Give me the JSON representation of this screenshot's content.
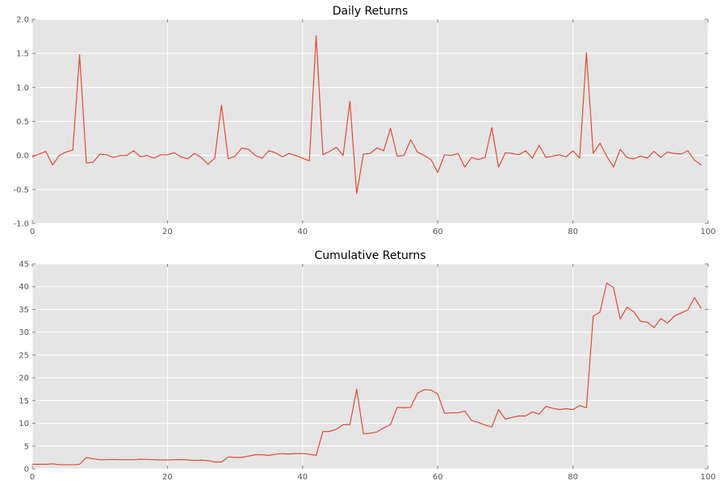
{
  "chart_data": [
    {
      "type": "line",
      "title": "Daily Returns",
      "xlabel": "",
      "ylabel": "",
      "xlim": [
        0,
        100
      ],
      "ylim": [
        -1.0,
        2.0
      ],
      "xticks": [
        "0",
        "20",
        "40",
        "60",
        "80",
        "100"
      ],
      "yticks": [
        "-1.0",
        "-0.5",
        "0.0",
        "0.5",
        "1.0",
        "1.5",
        "2.0"
      ],
      "grid": true,
      "color": "#e24a33",
      "x": [
        0,
        1,
        2,
        3,
        4,
        5,
        6,
        7,
        8,
        9,
        10,
        11,
        12,
        13,
        14,
        15,
        16,
        17,
        18,
        19,
        20,
        21,
        22,
        23,
        24,
        25,
        26,
        27,
        28,
        29,
        30,
        31,
        32,
        33,
        34,
        35,
        36,
        37,
        38,
        39,
        40,
        41,
        42,
        43,
        44,
        45,
        46,
        47,
        48,
        49,
        50,
        51,
        52,
        53,
        54,
        55,
        56,
        57,
        58,
        59,
        60,
        61,
        62,
        63,
        64,
        65,
        66,
        67,
        68,
        69,
        70,
        71,
        72,
        73,
        74,
        75,
        76,
        77,
        78,
        79,
        80,
        81,
        82,
        83,
        84,
        85,
        86,
        87,
        88,
        89,
        90,
        91,
        92,
        93,
        94,
        95,
        96,
        97,
        98,
        99
      ],
      "y": [
        -0.02,
        0.02,
        0.06,
        -0.14,
        0.0,
        0.05,
        0.08,
        1.48,
        -0.11,
        -0.1,
        0.02,
        0.01,
        -0.03,
        0.0,
        0.0,
        0.07,
        -0.02,
        0.0,
        -0.04,
        0.01,
        0.01,
        0.04,
        -0.02,
        -0.05,
        0.03,
        -0.03,
        -0.13,
        -0.04,
        0.74,
        -0.05,
        -0.01,
        0.11,
        0.09,
        0.0,
        -0.04,
        0.07,
        0.04,
        -0.02,
        0.03,
        0.0,
        -0.04,
        -0.08,
        1.76,
        0.01,
        0.06,
        0.12,
        0.0,
        0.8,
        -0.56,
        0.02,
        0.03,
        0.11,
        0.07,
        0.4,
        -0.01,
        0.0,
        0.23,
        0.05,
        0.0,
        -0.06,
        -0.25,
        0.01,
        0.0,
        0.03,
        -0.17,
        -0.03,
        -0.06,
        -0.03,
        0.41,
        -0.17,
        0.04,
        0.03,
        0.01,
        0.07,
        -0.04,
        0.15,
        -0.03,
        -0.01,
        0.01,
        -0.02,
        0.07,
        -0.04,
        1.51,
        0.03,
        0.18,
        -0.01,
        -0.17,
        0.09,
        -0.03,
        -0.05,
        -0.01,
        -0.04,
        0.06,
        -0.03,
        0.05,
        0.03,
        0.02,
        0.07,
        -0.07,
        -0.14
      ]
    },
    {
      "type": "line",
      "title": "Cumulative Returns",
      "xlabel": "",
      "ylabel": "",
      "xlim": [
        0,
        100
      ],
      "ylim": [
        0,
        45
      ],
      "xticks": [
        "0",
        "20",
        "40",
        "60",
        "80",
        "100"
      ],
      "yticks": [
        "0",
        "5",
        "10",
        "15",
        "20",
        "25",
        "30",
        "35",
        "40",
        "45"
      ],
      "grid": true,
      "color": "#e24a33",
      "x": [
        0,
        1,
        2,
        3,
        4,
        5,
        6,
        7,
        8,
        9,
        10,
        11,
        12,
        13,
        14,
        15,
        16,
        17,
        18,
        19,
        20,
        21,
        22,
        23,
        24,
        25,
        26,
        27,
        28,
        29,
        30,
        31,
        32,
        33,
        34,
        35,
        36,
        37,
        38,
        39,
        40,
        41,
        42,
        43,
        44,
        45,
        46,
        47,
        48,
        49,
        50,
        51,
        52,
        53,
        54,
        55,
        56,
        57,
        58,
        59,
        60,
        61,
        62,
        63,
        64,
        65,
        66,
        67,
        68,
        69,
        70,
        71,
        72,
        73,
        74,
        75,
        76,
        77,
        78,
        79,
        80,
        81,
        82,
        83,
        84,
        85,
        86,
        87,
        88,
        89,
        90,
        91,
        92,
        93,
        94,
        95,
        96,
        97,
        98,
        99
      ],
      "y": [
        1.0,
        1.0,
        1.0,
        1.1,
        0.9,
        0.9,
        0.9,
        1.0,
        2.5,
        2.2,
        2.0,
        2.0,
        2.05,
        2.0,
        2.0,
        2.0,
        2.1,
        2.05,
        2.0,
        1.95,
        1.95,
        2.0,
        2.05,
        1.95,
        1.85,
        1.9,
        1.8,
        1.5,
        1.5,
        2.6,
        2.5,
        2.5,
        2.8,
        3.1,
        3.1,
        2.95,
        3.2,
        3.35,
        3.25,
        3.35,
        3.35,
        3.2,
        2.95,
        8.2,
        8.2,
        8.7,
        9.7,
        9.7,
        17.5,
        7.7,
        7.8,
        8.1,
        9.0,
        9.7,
        13.5,
        13.4,
        13.5,
        16.6,
        17.4,
        17.3,
        16.4,
        12.2,
        12.3,
        12.3,
        12.7,
        10.6,
        10.2,
        9.6,
        9.2,
        13.0,
        10.9,
        11.3,
        11.6,
        11.6,
        12.5,
        12.0,
        13.7,
        13.3,
        13.0,
        13.2,
        13.0,
        13.9,
        13.4,
        33.5,
        34.4,
        40.8,
        39.8,
        32.9,
        35.5,
        34.5,
        32.4,
        32.2,
        31.0,
        33.0,
        32.0,
        33.5,
        34.2,
        34.9,
        37.6,
        35.2
      ]
    }
  ]
}
